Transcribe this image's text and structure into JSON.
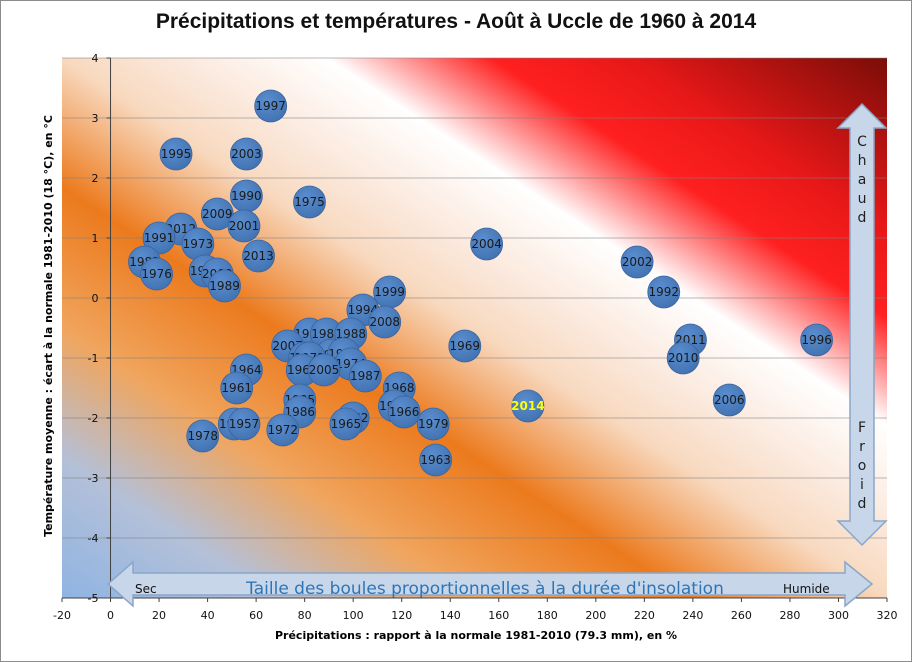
{
  "chart_data": {
    "type": "scatter",
    "variant": "bubble",
    "title": "Précipitations et températures - Août à Uccle de 1960 à 2014",
    "xlabel": "Précipitations  : rapport à la normale 1981-2010 (79.3 mm), en %",
    "ylabel": "Température moyenne : écart à  la normale 1981-2010 (18 °C), en °C",
    "xlim": [
      -20,
      320
    ],
    "ylim": [
      -5,
      4
    ],
    "x_ticks": [
      "-20",
      "0",
      "20",
      "40",
      "60",
      "80",
      "100",
      "120",
      "140",
      "160",
      "180",
      "200",
      "220",
      "240",
      "260",
      "280",
      "300",
      "320"
    ],
    "y_ticks": [
      "4",
      "3",
      "2",
      "1",
      "0",
      "-1",
      "-2",
      "-3",
      "-4",
      "-5"
    ],
    "grid": "horizontal",
    "background": "diagonal gradient from blue (dry, cold) through orange to red (warm)",
    "bubble_color": "#4f81bd",
    "highlight_color": "#ffff00",
    "annotations": {
      "size_note": "Taille des boules proportionnelles  à la durée d'insolation",
      "dry": "Sec",
      "wet": "Humide",
      "hot": "Chaud",
      "cold": "Froid"
    },
    "points": [
      {
        "year": "1997",
        "x": 66,
        "y": 3.2
      },
      {
        "year": "1995",
        "x": 27,
        "y": 2.4
      },
      {
        "year": "2003",
        "x": 56,
        "y": 2.4
      },
      {
        "year": "1990",
        "x": 56,
        "y": 1.7
      },
      {
        "year": "1975",
        "x": 82,
        "y": 1.6
      },
      {
        "year": "2009",
        "x": 44,
        "y": 1.4
      },
      {
        "year": "2012",
        "x": 29,
        "y": 1.15
      },
      {
        "year": "2001",
        "x": 55,
        "y": 1.2
      },
      {
        "year": "1991",
        "x": 20,
        "y": 1.0
      },
      {
        "year": "1973",
        "x": 36,
        "y": 0.9
      },
      {
        "year": "2013",
        "x": 61,
        "y": 0.7
      },
      {
        "year": "1983",
        "x": 14,
        "y": 0.6
      },
      {
        "year": "1976",
        "x": 19,
        "y": 0.4
      },
      {
        "year": "1981",
        "x": 39,
        "y": 0.45
      },
      {
        "year": "2000",
        "x": 44,
        "y": 0.4
      },
      {
        "year": "1989",
        "x": 47,
        "y": 0.2
      },
      {
        "year": "2004",
        "x": 155,
        "y": 0.9
      },
      {
        "year": "2002",
        "x": 217,
        "y": 0.6
      },
      {
        "year": "1992",
        "x": 228,
        "y": 0.1
      },
      {
        "year": "1999",
        "x": 115,
        "y": 0.1
      },
      {
        "year": "1994",
        "x": 104,
        "y": -0.2
      },
      {
        "year": "2008",
        "x": 113,
        "y": -0.4
      },
      {
        "year": "1993",
        "x": 82,
        "y": -0.6
      },
      {
        "year": "1980",
        "x": 89,
        "y": -0.6
      },
      {
        "year": "1988",
        "x": 99,
        "y": -0.6
      },
      {
        "year": "2007",
        "x": 73,
        "y": -0.8
      },
      {
        "year": "1969",
        "x": 146,
        "y": -0.8
      },
      {
        "year": "1977",
        "x": 91,
        "y": -0.95
      },
      {
        "year": "1982",
        "x": 96,
        "y": -0.93
      },
      {
        "year": "1965",
        "x": 80,
        "y": -1.0
      },
      {
        "year": "1971",
        "x": 82,
        "y": -1.0
      },
      {
        "year": "2011",
        "x": 239,
        "y": -0.7
      },
      {
        "year": "1996",
        "x": 291,
        "y": -0.7
      },
      {
        "year": "2010",
        "x": 236,
        "y": -1.0
      },
      {
        "year": "1974",
        "x": 99,
        "y": -1.1
      },
      {
        "year": "1967",
        "x": 79,
        "y": -1.2
      },
      {
        "year": "2005",
        "x": 88,
        "y": -1.2
      },
      {
        "year": "1964",
        "x": 56,
        "y": -1.2
      },
      {
        "year": "1987",
        "x": 105,
        "y": -1.3
      },
      {
        "year": "1961",
        "x": 52,
        "y": -1.5
      },
      {
        "year": "1968",
        "x": 119,
        "y": -1.5
      },
      {
        "year": "1985",
        "x": 78,
        "y": -1.7
      },
      {
        "year": "2006",
        "x": 255,
        "y": -1.7
      },
      {
        "year": "2014",
        "x": 172,
        "y": -1.8,
        "highlight": true
      },
      {
        "year": "1960",
        "x": 117,
        "y": -1.8
      },
      {
        "year": "1966",
        "x": 121,
        "y": -1.9
      },
      {
        "year": "1986",
        "x": 78,
        "y": -1.9
      },
      {
        "year": "1962",
        "x": 100,
        "y": -2.0
      },
      {
        "year": "1965",
        "x": 97,
        "y": -2.1
      },
      {
        "year": "1984",
        "x": 51,
        "y": -2.1
      },
      {
        "year": "1957",
        "x": 55,
        "y": -2.1
      },
      {
        "year": "1979",
        "x": 133,
        "y": -2.1
      },
      {
        "year": "1972",
        "x": 71,
        "y": -2.2
      },
      {
        "year": "1978",
        "x": 38,
        "y": -2.3
      },
      {
        "year": "1963",
        "x": 134,
        "y": -2.7
      }
    ]
  }
}
